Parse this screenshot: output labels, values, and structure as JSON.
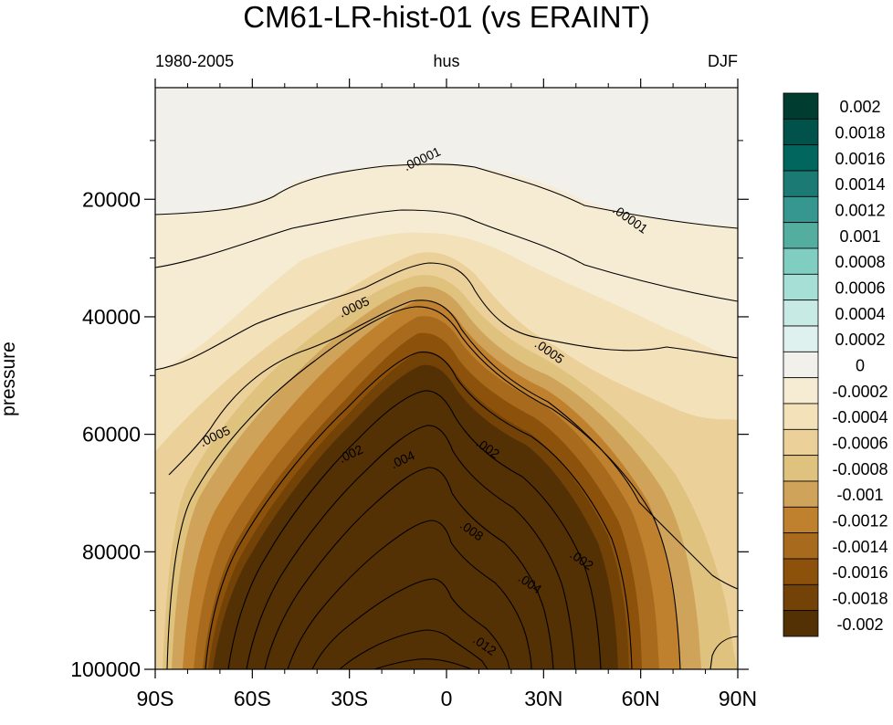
{
  "chart_data": {
    "type": "contour",
    "title": "CM61-LR-hist-01  (vs ERAINT)",
    "left_string": "1980-2005",
    "center_string": "hus",
    "right_string": "DJF",
    "ylabel": "pressure",
    "xlabel": "",
    "x_ticks": [
      {
        "value": -90,
        "label": "90S"
      },
      {
        "value": -60,
        "label": "60S"
      },
      {
        "value": -30,
        "label": "30S"
      },
      {
        "value": 0,
        "label": "0"
      },
      {
        "value": 30,
        "label": "30N"
      },
      {
        "value": 60,
        "label": "60N"
      },
      {
        "value": 90,
        "label": "90N"
      }
    ],
    "xlim": [
      -90,
      90
    ],
    "y_ticks": [
      {
        "value": 20000,
        "label": "20000"
      },
      {
        "value": 40000,
        "label": "40000"
      },
      {
        "value": 60000,
        "label": "60000"
      },
      {
        "value": 80000,
        "label": "80000"
      },
      {
        "value": 100000,
        "label": "100000"
      }
    ],
    "ylim": [
      1000,
      100000
    ],
    "y_inverted": true,
    "colorbar": {
      "levels": [
        "0.002",
        "0.0018",
        "0.0016",
        "0.0014",
        "0.0012",
        "0.001",
        "0.0008",
        "0.0006",
        "0.0004",
        "0.0002",
        "0",
        "-0.0002",
        "-0.0004",
        "-0.0006",
        "-0.0008",
        "-0.001",
        "-0.0012",
        "-0.0014",
        "-0.0016",
        "-0.0018",
        "-0.002"
      ],
      "colors": [
        "#003c30",
        "#01524a",
        "#01665e",
        "#1b7a73",
        "#35978f",
        "#54ae9f",
        "#80cdc1",
        "#a6dfd6",
        "#c7eae5",
        "#dff1ee",
        "#f2f0ea",
        "#f6ecd4",
        "#f3e1b9",
        "#ebd09a",
        "#dfc27d",
        "#cfa35a",
        "#bf812d",
        "#a86b1e",
        "#8c510a",
        "#734207",
        "#543005"
      ]
    },
    "contour_labels": [
      {
        "text": ".00001",
        "x": -7,
        "y": 13800
      },
      {
        "text": ".00001",
        "x": 56,
        "y": 24000
      },
      {
        "text": ".0005",
        "x": -28,
        "y": 39000
      },
      {
        "text": ".0005",
        "x": 31,
        "y": 46500
      },
      {
        "text": ".0005",
        "x": -71,
        "y": 61000
      },
      {
        "text": ".002",
        "x": -29,
        "y": 64000
      },
      {
        "text": ".004",
        "x": -13,
        "y": 65000
      },
      {
        "text": ".002",
        "x": 12,
        "y": 63000
      },
      {
        "text": ".008",
        "x": 7,
        "y": 77000
      },
      {
        "text": ".004",
        "x": 25,
        "y": 86000
      },
      {
        "text": ".002",
        "x": 41,
        "y": 82000
      },
      {
        "text": ".012",
        "x": 11,
        "y": 96500
      }
    ]
  }
}
